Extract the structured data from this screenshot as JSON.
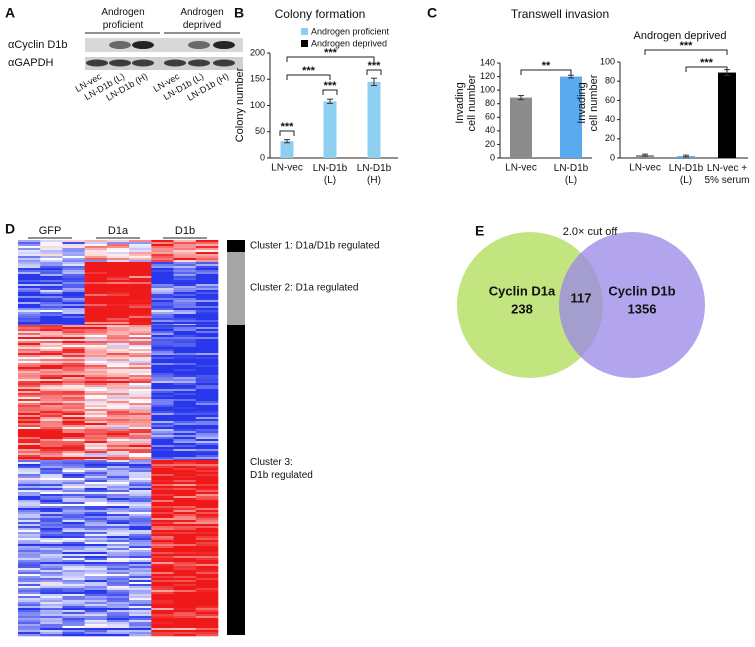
{
  "panels": [
    "A",
    "B",
    "C",
    "D",
    "E"
  ],
  "blot": {
    "groups": [
      "Androgen\nproficient",
      "Androgen\ndeprived"
    ],
    "rows": [
      "αCyclin D1b",
      "αGAPDH"
    ],
    "lanes": [
      "LN-vec",
      "LN-D1b (L)",
      "LN-D1b (H)",
      "LN-vec",
      "LN-D1b (L)",
      "LN-D1b (H)"
    ]
  },
  "chart_data": [
    {
      "type": "bar",
      "title": "Colony formation",
      "ylabel": "Colony number",
      "categories": [
        "LN-vec",
        "LN-D1b\n(L)",
        "LN-D1b\n(H)"
      ],
      "series": [
        {
          "name": "Androgen proficient",
          "color": "#8ecff0",
          "values": [
            32,
            108,
            145
          ],
          "errors": [
            3,
            4,
            7
          ]
        },
        {
          "name": "Androgen deprived",
          "color": "#000000",
          "values": [
            null,
            null,
            null
          ]
        }
      ],
      "ylim": [
        0,
        200
      ],
      "yticks": [
        0,
        50,
        100,
        150,
        200
      ],
      "annotations": [
        "***",
        "***",
        "***",
        "***",
        "***"
      ]
    },
    {
      "type": "bar",
      "title": "Transwell invasion",
      "ylabel": "Invading\ncell number",
      "categories": [
        "LN-vec",
        "LN-D1b\n(L)"
      ],
      "values": [
        89,
        120
      ],
      "errors": [
        3,
        2
      ],
      "colors": [
        "#8c8c8c",
        "#5aaaf0"
      ],
      "ylim": [
        0,
        140
      ],
      "yticks": [
        0,
        20,
        40,
        60,
        80,
        100,
        120,
        140
      ],
      "annotations": [
        "**"
      ]
    },
    {
      "type": "bar",
      "subtitle": "Androgen deprived",
      "ylabel": "Invading\ncell number",
      "categories": [
        "LN-vec",
        "LN-D1b\n(L)",
        "LN-vec +\n5% serum"
      ],
      "values": [
        3,
        2,
        89
      ],
      "errors": [
        1,
        1,
        3
      ],
      "colors": [
        "#8c8c8c",
        "#5aaaf0",
        "#000000"
      ],
      "ylim": [
        0,
        100
      ],
      "yticks": [
        0,
        20,
        40,
        60,
        80,
        100
      ],
      "annotations": [
        "***",
        "***"
      ]
    }
  ],
  "heatmap": {
    "groups": [
      "GFP",
      "D1a",
      "D1b"
    ],
    "clusters": [
      "Cluster 1: D1a/D1b regulated",
      "Cluster 2: D1a regulated",
      "Cluster 3:\nD1b regulated"
    ]
  },
  "venn": {
    "title": "2.0× cut off",
    "sets": [
      {
        "name": "Cyclin D1a",
        "count": "238"
      },
      {
        "name": "Cyclin D1b",
        "count": "1356"
      }
    ],
    "overlap": "117"
  }
}
